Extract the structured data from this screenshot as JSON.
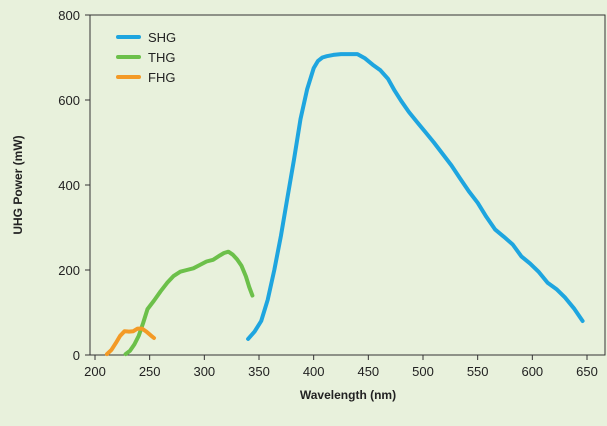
{
  "chart_data": {
    "type": "line",
    "title": "",
    "xlabel": "Wavelength (nm)",
    "ylabel": "UHG Power (mW)",
    "xlim": [
      200,
      660
    ],
    "ylim": [
      0,
      800
    ],
    "x_ticks": [
      200,
      250,
      300,
      350,
      400,
      450,
      500,
      550,
      600,
      650
    ],
    "y_ticks": [
      0,
      200,
      400,
      600,
      800
    ],
    "grid": false,
    "legend": "top-left",
    "series": [
      {
        "name": "SHG",
        "color": "#1ea5df",
        "x": [
          340,
          346,
          352,
          358,
          364,
          370,
          376,
          382,
          388,
          394,
          400,
          404,
          408,
          412,
          418,
          425,
          432,
          440,
          447,
          454,
          461,
          468,
          474,
          480,
          487,
          494,
          502,
          510,
          518,
          526,
          534,
          542,
          550,
          558,
          566,
          574,
          582,
          590,
          598,
          606,
          614,
          622,
          630,
          638,
          646
        ],
        "y": [
          38,
          55,
          80,
          130,
          200,
          280,
          370,
          460,
          555,
          625,
          675,
          692,
          700,
          703,
          706,
          708,
          708,
          708,
          698,
          683,
          670,
          650,
          622,
          598,
          572,
          550,
          525,
          500,
          473,
          446,
          415,
          385,
          358,
          325,
          295,
          278,
          260,
          232,
          215,
          195,
          170,
          155,
          135,
          110,
          80
        ]
      },
      {
        "name": "THG",
        "color": "#6cc04a",
        "x": [
          228,
          232,
          236,
          240,
          244,
          248,
          254,
          260,
          266,
          272,
          278,
          284,
          290,
          296,
          302,
          308,
          314,
          318,
          322,
          326,
          330,
          334,
          338,
          341,
          344
        ],
        "y": [
          2,
          10,
          25,
          45,
          75,
          108,
          128,
          150,
          170,
          186,
          196,
          200,
          204,
          212,
          220,
          224,
          234,
          240,
          243,
          236,
          225,
          210,
          185,
          160,
          140
        ]
      },
      {
        "name": "FHG",
        "color": "#f39a26",
        "x": [
          211,
          215,
          219,
          223,
          227,
          231,
          235,
          239,
          243,
          247,
          251,
          254
        ],
        "y": [
          2,
          12,
          28,
          45,
          56,
          55,
          56,
          62,
          62,
          55,
          46,
          40
        ]
      }
    ]
  }
}
